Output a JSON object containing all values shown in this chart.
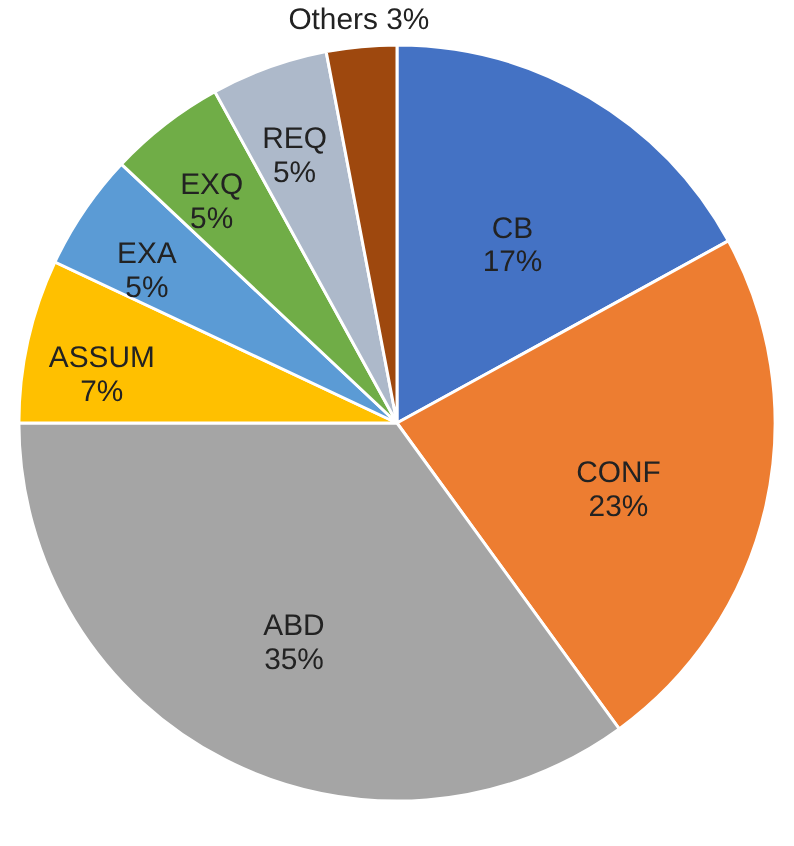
{
  "chart_data": {
    "type": "pie",
    "categories": [
      "CB",
      "CONF",
      "ABD",
      "ASSUM",
      "EXA",
      "EXQ",
      "REQ",
      "Others"
    ],
    "values": [
      17,
      23,
      35,
      7,
      5,
      5,
      5,
      3
    ],
    "colors": [
      "#4472c4",
      "#ed7d31",
      "#a5a5a5",
      "#ffc000",
      "#5b9bd5",
      "#70ad47",
      "#adb9ca",
      "#9e480e"
    ],
    "value_labels": [
      "17%",
      "23%",
      "35%",
      "7%",
      "5%",
      "5%",
      "5%",
      "3%"
    ],
    "legend": false
  }
}
